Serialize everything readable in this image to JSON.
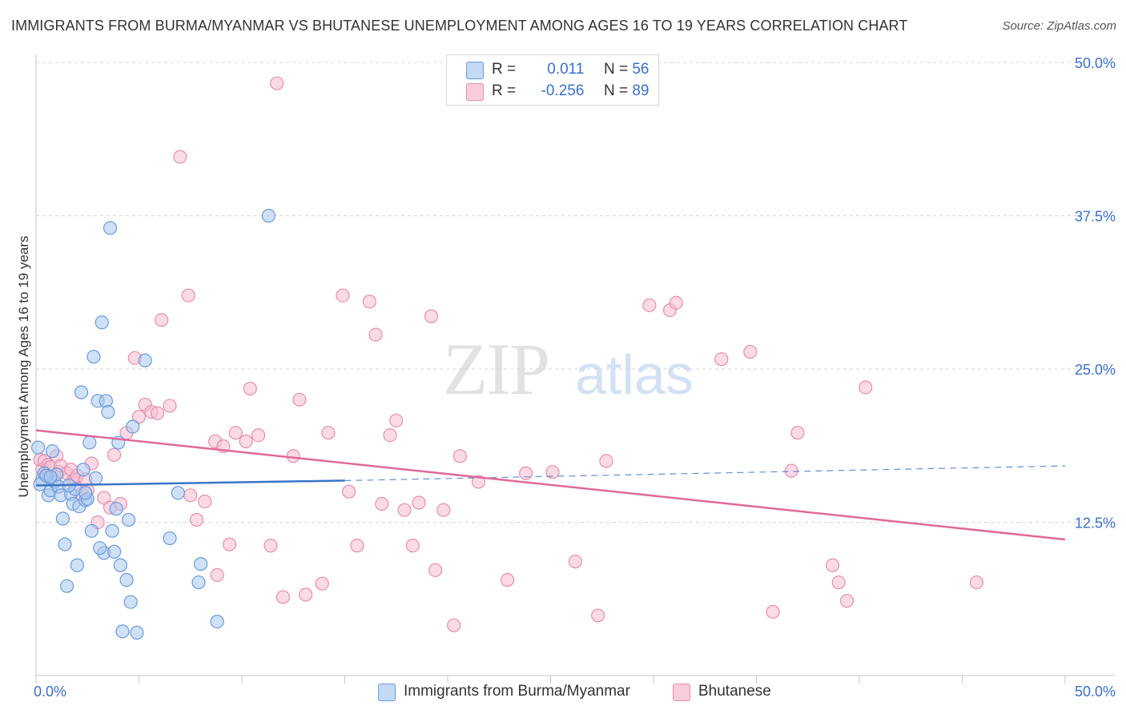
{
  "title": "IMMIGRANTS FROM BURMA/MYANMAR VS BHUTANESE UNEMPLOYMENT AMONG AGES 16 TO 19 YEARS CORRELATION CHART",
  "source": "Source: ZipAtlas.com",
  "watermark": {
    "zip": "ZIP",
    "atlas": "atlas"
  },
  "legend": {
    "rows": [
      {
        "r_label": "R =",
        "r_value": "0.011",
        "n_label": "N =",
        "n_value": "56"
      },
      {
        "r_label": "R =",
        "r_value": "-0.256",
        "n_label": "N =",
        "n_value": "89"
      }
    ]
  },
  "bottom_legend": {
    "series1": "Immigrants from Burma/Myanmar",
    "series2": "Bhutanese"
  },
  "colors": {
    "blue_fill": "#aac8ef",
    "blue_stroke": "#6b9ad8",
    "blue_line": "#3a74c8",
    "pink_fill": "#f5bcd0",
    "pink_stroke": "#e68eaf",
    "pink_line": "#e0699a",
    "axis_text": "#3a6fcc",
    "grid": "#d6d6d6"
  },
  "chart_data": {
    "type": "scatter",
    "title": "IMMIGRANTS FROM BURMA/MYANMAR VS BHUTANESE UNEMPLOYMENT AMONG AGES 16 TO 19 YEARS CORRELATION CHART",
    "xlabel": "",
    "ylabel": "Unemployment Among Ages 16 to 19 years",
    "xlim": [
      0,
      50
    ],
    "ylim": [
      0,
      50
    ],
    "x_tick_labels": [
      "0.0%",
      "50.0%"
    ],
    "y_ticks": [
      12.5,
      25.0,
      37.5,
      50.0
    ],
    "y_tick_labels": [
      "12.5%",
      "25.0%",
      "37.5%",
      "50.0%"
    ],
    "grid": true,
    "series": [
      {
        "name": "Immigrants from Burma/Myanmar",
        "R": 0.011,
        "N": 56,
        "trend": {
          "x": [
            0,
            15
          ],
          "y": [
            15.5,
            15.9
          ],
          "dashed_to": [
            50,
            17.1
          ]
        },
        "points": [
          [
            0.1,
            18.6
          ],
          [
            0.3,
            16.0
          ],
          [
            0.4,
            16.5
          ],
          [
            0.6,
            14.7
          ],
          [
            0.7,
            15.1
          ],
          [
            0.8,
            18.3
          ],
          [
            0.9,
            15.8
          ],
          [
            1.0,
            16.4
          ],
          [
            1.1,
            15.4
          ],
          [
            1.2,
            14.7
          ],
          [
            1.3,
            12.8
          ],
          [
            1.4,
            10.7
          ],
          [
            1.5,
            7.3
          ],
          [
            1.7,
            14.8
          ],
          [
            1.8,
            14.0
          ],
          [
            1.9,
            15.2
          ],
          [
            2.0,
            9.0
          ],
          [
            2.1,
            13.8
          ],
          [
            2.2,
            23.1
          ],
          [
            2.3,
            16.8
          ],
          [
            2.4,
            14.3
          ],
          [
            2.5,
            14.4
          ],
          [
            2.6,
            19.0
          ],
          [
            2.7,
            11.8
          ],
          [
            2.8,
            26.0
          ],
          [
            2.9,
            16.1
          ],
          [
            3.0,
            22.4
          ],
          [
            3.2,
            28.8
          ],
          [
            3.3,
            10.0
          ],
          [
            3.4,
            22.4
          ],
          [
            3.5,
            21.5
          ],
          [
            3.6,
            36.5
          ],
          [
            3.7,
            11.8
          ],
          [
            3.8,
            10.1
          ],
          [
            3.9,
            13.6
          ],
          [
            4.0,
            19.0
          ],
          [
            4.1,
            9.0
          ],
          [
            4.2,
            3.6
          ],
          [
            4.4,
            7.8
          ],
          [
            4.5,
            12.7
          ],
          [
            4.6,
            6.0
          ],
          [
            4.7,
            20.3
          ],
          [
            4.9,
            3.5
          ],
          [
            5.3,
            25.7
          ],
          [
            6.9,
            14.9
          ],
          [
            6.5,
            11.2
          ],
          [
            7.9,
            7.6
          ],
          [
            8.0,
            9.1
          ],
          [
            8.8,
            4.4
          ],
          [
            11.3,
            37.5
          ],
          [
            0.2,
            15.6
          ],
          [
            0.5,
            16.3
          ],
          [
            1.6,
            15.5
          ],
          [
            2.4,
            14.9
          ],
          [
            3.1,
            10.4
          ],
          [
            0.7,
            16.2
          ]
        ]
      },
      {
        "name": "Bhutanese",
        "R": -0.256,
        "N": 89,
        "trend": {
          "x": [
            0,
            50
          ],
          "y": [
            20.0,
            11.1
          ]
        },
        "points": [
          [
            0.2,
            17.6
          ],
          [
            0.3,
            16.8
          ],
          [
            0.4,
            17.5
          ],
          [
            0.5,
            16.4
          ],
          [
            0.6,
            17.2
          ],
          [
            0.7,
            17.0
          ],
          [
            0.8,
            16.1
          ],
          [
            1.0,
            17.9
          ],
          [
            1.1,
            16.6
          ],
          [
            1.2,
            17.1
          ],
          [
            1.5,
            16.5
          ],
          [
            1.7,
            16.8
          ],
          [
            1.8,
            15.9
          ],
          [
            1.9,
            16.0
          ],
          [
            2.0,
            16.3
          ],
          [
            2.2,
            14.8
          ],
          [
            2.4,
            16.0
          ],
          [
            2.5,
            15.1
          ],
          [
            2.7,
            17.3
          ],
          [
            3.0,
            12.5
          ],
          [
            3.3,
            14.5
          ],
          [
            3.6,
            13.7
          ],
          [
            3.8,
            18.0
          ],
          [
            4.1,
            14.0
          ],
          [
            4.4,
            19.8
          ],
          [
            4.8,
            25.9
          ],
          [
            5.0,
            21.1
          ],
          [
            5.3,
            22.1
          ],
          [
            5.6,
            21.5
          ],
          [
            5.9,
            21.4
          ],
          [
            6.1,
            29.0
          ],
          [
            6.5,
            22.0
          ],
          [
            7.0,
            42.3
          ],
          [
            7.4,
            31.0
          ],
          [
            7.5,
            14.7
          ],
          [
            7.8,
            12.7
          ],
          [
            8.2,
            14.2
          ],
          [
            8.7,
            19.1
          ],
          [
            8.8,
            8.2
          ],
          [
            9.1,
            18.7
          ],
          [
            9.4,
            10.7
          ],
          [
            9.7,
            19.8
          ],
          [
            10.2,
            19.1
          ],
          [
            10.4,
            23.4
          ],
          [
            10.8,
            19.6
          ],
          [
            11.4,
            10.6
          ],
          [
            11.7,
            48.3
          ],
          [
            12.0,
            6.4
          ],
          [
            12.5,
            17.9
          ],
          [
            12.8,
            22.5
          ],
          [
            13.1,
            6.6
          ],
          [
            13.9,
            7.5
          ],
          [
            14.2,
            19.8
          ],
          [
            14.9,
            31.0
          ],
          [
            15.2,
            15.0
          ],
          [
            15.6,
            10.6
          ],
          [
            16.2,
            30.5
          ],
          [
            16.5,
            27.8
          ],
          [
            16.8,
            14.0
          ],
          [
            17.2,
            19.6
          ],
          [
            17.5,
            20.8
          ],
          [
            17.9,
            13.5
          ],
          [
            18.3,
            10.6
          ],
          [
            18.6,
            14.1
          ],
          [
            19.2,
            29.3
          ],
          [
            19.4,
            8.6
          ],
          [
            19.8,
            13.5
          ],
          [
            20.3,
            4.1
          ],
          [
            20.6,
            17.9
          ],
          [
            21.5,
            15.8
          ],
          [
            22.9,
            7.8
          ],
          [
            23.8,
            16.5
          ],
          [
            25.1,
            16.6
          ],
          [
            26.2,
            9.3
          ],
          [
            27.3,
            4.9
          ],
          [
            27.7,
            17.5
          ],
          [
            29.8,
            30.2
          ],
          [
            30.8,
            29.8
          ],
          [
            31.1,
            30.4
          ],
          [
            33.3,
            25.8
          ],
          [
            34.7,
            26.4
          ],
          [
            35.8,
            5.2
          ],
          [
            36.7,
            16.7
          ],
          [
            37.0,
            19.8
          ],
          [
            38.7,
            9.0
          ],
          [
            39.0,
            7.6
          ],
          [
            39.4,
            6.1
          ],
          [
            40.3,
            23.5
          ],
          [
            45.7,
            7.6
          ]
        ]
      }
    ]
  }
}
